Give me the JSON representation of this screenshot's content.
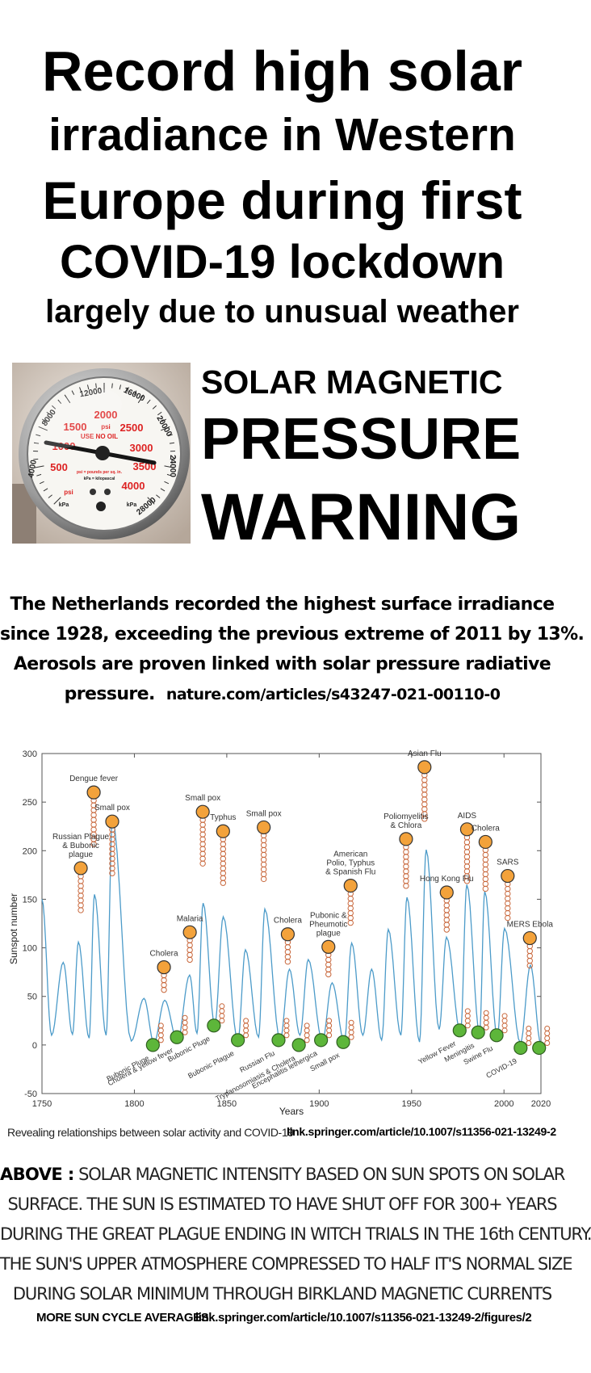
{
  "headline": {
    "line1": "Record high solar",
    "line2": "irradiance in Western",
    "line3": "Europe during first",
    "line4": "COVID-19 lockdown",
    "line5": "largely due to unusual weather"
  },
  "gauge_photo": {
    "psi_ticks": [
      "500",
      "1000",
      "1500",
      "2000",
      "2500",
      "3000",
      "3500",
      "4000"
    ],
    "kpa_ticks": [
      "4000",
      "8000",
      "12000",
      "16000",
      "20000",
      "24000",
      "28000"
    ],
    "label_psi": "psi",
    "label_kpa": "kPa",
    "label_use_no_oil": "USE NO OIL",
    "label_legend": "psi = pounds per sq. in.",
    "label_legend2": "kPa = kilopascal"
  },
  "warning": {
    "line1": "SOLAR MAGNETIC",
    "line2": "PRESSURE",
    "line3": "WARNING"
  },
  "paragraph": {
    "line1": "The Netherlands recorded the highest surface irradiance",
    "line2": "since 1928, exceeding the previous extreme of 2011 by 13%.",
    "line3": "Aerosols are proven linked with solar pressure radiative",
    "line4": "pressure.",
    "url": "nature.com/articles/s43247-021-00110-0"
  },
  "chart_data": {
    "type": "line",
    "xlabel": "Years",
    "ylabel": "Sunspot number",
    "xlim": [
      1750,
      2020
    ],
    "ylim": [
      -50,
      300
    ],
    "xticks": [
      "1750",
      "1800",
      "1850",
      "1900",
      "1950",
      "2000",
      "2020"
    ],
    "yticks": [
      "300",
      "250",
      "200",
      "150",
      "100",
      "50",
      "0",
      "-50"
    ],
    "grid": false,
    "line_color": "#4c9bc9",
    "series": [
      {
        "x": [
          1750,
          1755.2,
          1761.5,
          1766.5,
          1769.7,
          1775.5,
          1778.4,
          1784.7,
          1788.1,
          1798.3,
          1805.2,
          1810.6,
          1816.4,
          1823.3,
          1829.9,
          1833.9,
          1837.2,
          1843.5,
          1848.1,
          1856,
          1860.1,
          1867.2,
          1870.6,
          1878.9,
          1883.9,
          1889.6,
          1894.1,
          1901.7,
          1907,
          1913.6,
          1917.6,
          1923.6,
          1928.4,
          1933.8,
          1937.4,
          1944.2,
          1947.5,
          1954.3,
          1957.9,
          1964.9,
          1968.9,
          1976.5,
          1979.9,
          1986.8,
          1989.6,
          1996.4,
          2000.3,
          2008.9,
          2014.3,
          2019.9
        ],
        "values": [
          150,
          10,
          85,
          11,
          106,
          7,
          155,
          10,
          232,
          4,
          48,
          2,
          46,
          4,
          72,
          12,
          146,
          20,
          132,
          4,
          98,
          8,
          140,
          5,
          78,
          10,
          88,
          4,
          64,
          3,
          105,
          10,
          78,
          5,
          119,
          10,
          152,
          3,
          201,
          16,
          111,
          12,
          165,
          12,
          158,
          8,
          120,
          2,
          82,
          2
        ]
      }
    ],
    "epidemics_at_peaks": [
      {
        "label": "Russian Plague & Bubonic plague",
        "year": 1771,
        "y": 182
      },
      {
        "label": "Dengue fever",
        "year": 1778,
        "y": 260
      },
      {
        "label": "Small pox",
        "year": 1788,
        "y": 230
      },
      {
        "label": "Cholera",
        "year": 1816,
        "y": 80
      },
      {
        "label": "Malaria",
        "year": 1830,
        "y": 116
      },
      {
        "label": "Small pox",
        "year": 1837,
        "y": 240
      },
      {
        "label": "Typhus",
        "year": 1848,
        "y": 220
      },
      {
        "label": "Small pox",
        "year": 1870,
        "y": 224
      },
      {
        "label": "Cholera",
        "year": 1883,
        "y": 114
      },
      {
        "label": "Pubonic & Pheumotic plague",
        "year": 1905,
        "y": 101
      },
      {
        "label": "American Polio, Typhus & Spanish Flu",
        "year": 1917,
        "y": 164
      },
      {
        "label": "Poliomyelitis & Chlora",
        "year": 1947,
        "y": 212
      },
      {
        "label": "Asian Flu",
        "year": 1957,
        "y": 286
      },
      {
        "label": "Hong Kong Flu",
        "year": 1969,
        "y": 157
      },
      {
        "label": "AIDS",
        "year": 1980,
        "y": 222
      },
      {
        "label": "Cholera",
        "year": 1990,
        "y": 209
      },
      {
        "label": "SARS",
        "year": 2002,
        "y": 174
      },
      {
        "label": "MERS Ebola",
        "year": 2014,
        "y": 110
      }
    ],
    "epidemics_at_minima": [
      {
        "label": "Bubonic Pluge",
        "year": 1810,
        "y": 0
      },
      {
        "label": "Cholera & yellow fever",
        "year": 1823,
        "y": 8
      },
      {
        "label": "Bubonic Pluge",
        "year": 1843,
        "y": 20
      },
      {
        "label": "Bubonic Plague",
        "year": 1856,
        "y": 5
      },
      {
        "label": "Russian Flu",
        "year": 1878,
        "y": 5
      },
      {
        "label": "Trypanosomiasis & Cholera",
        "year": 1889,
        "y": 0
      },
      {
        "label": "Encephalitis lethergica",
        "year": 1901,
        "y": 5
      },
      {
        "label": "Small pox",
        "year": 1913,
        "y": 3
      },
      {
        "label": "Yellow Fever",
        "year": 1976,
        "y": 15
      },
      {
        "label": "Meningitis",
        "year": 1986,
        "y": 13
      },
      {
        "label": "Swine Flu",
        "year": 1996,
        "y": 10
      },
      {
        "label": "COVID-19",
        "year": 2009,
        "y": -3
      },
      {
        "label": "",
        "year": 2019,
        "y": -3
      }
    ]
  },
  "captions": {
    "left": "Revealing relationships between solar activity and COVID-19",
    "right": "link.springer.com/article/10.1007/s11356-021-13249-2"
  },
  "above": {
    "lead": "ABOVE :",
    "line1": "SOLAR MAGNETIC INTENSITY BASED ON SUN SPOTS ON SOLAR",
    "line2": "SURFACE. THE SUN IS ESTIMATED TO HAVE SHUT OFF FOR 300+ YEARS",
    "line3": "DURING THE GREAT PLAGUE ENDING IN WITCH TRIALS IN THE 16th CENTURY.",
    "line4": "THE SUN'S UPPER ATMOSPHERE COMPRESSED TO HALF IT'S NORMAL SIZE",
    "line5": "DURING SOLAR MINIMUM THROUGH BIRKLAND MAGNETIC CURRENTS"
  },
  "footer": {
    "more": "MORE SUN CYCLE AVERAGES",
    "url": "link.springer.com/article/10.1007/s11356-021-13249-2/figures/2"
  }
}
